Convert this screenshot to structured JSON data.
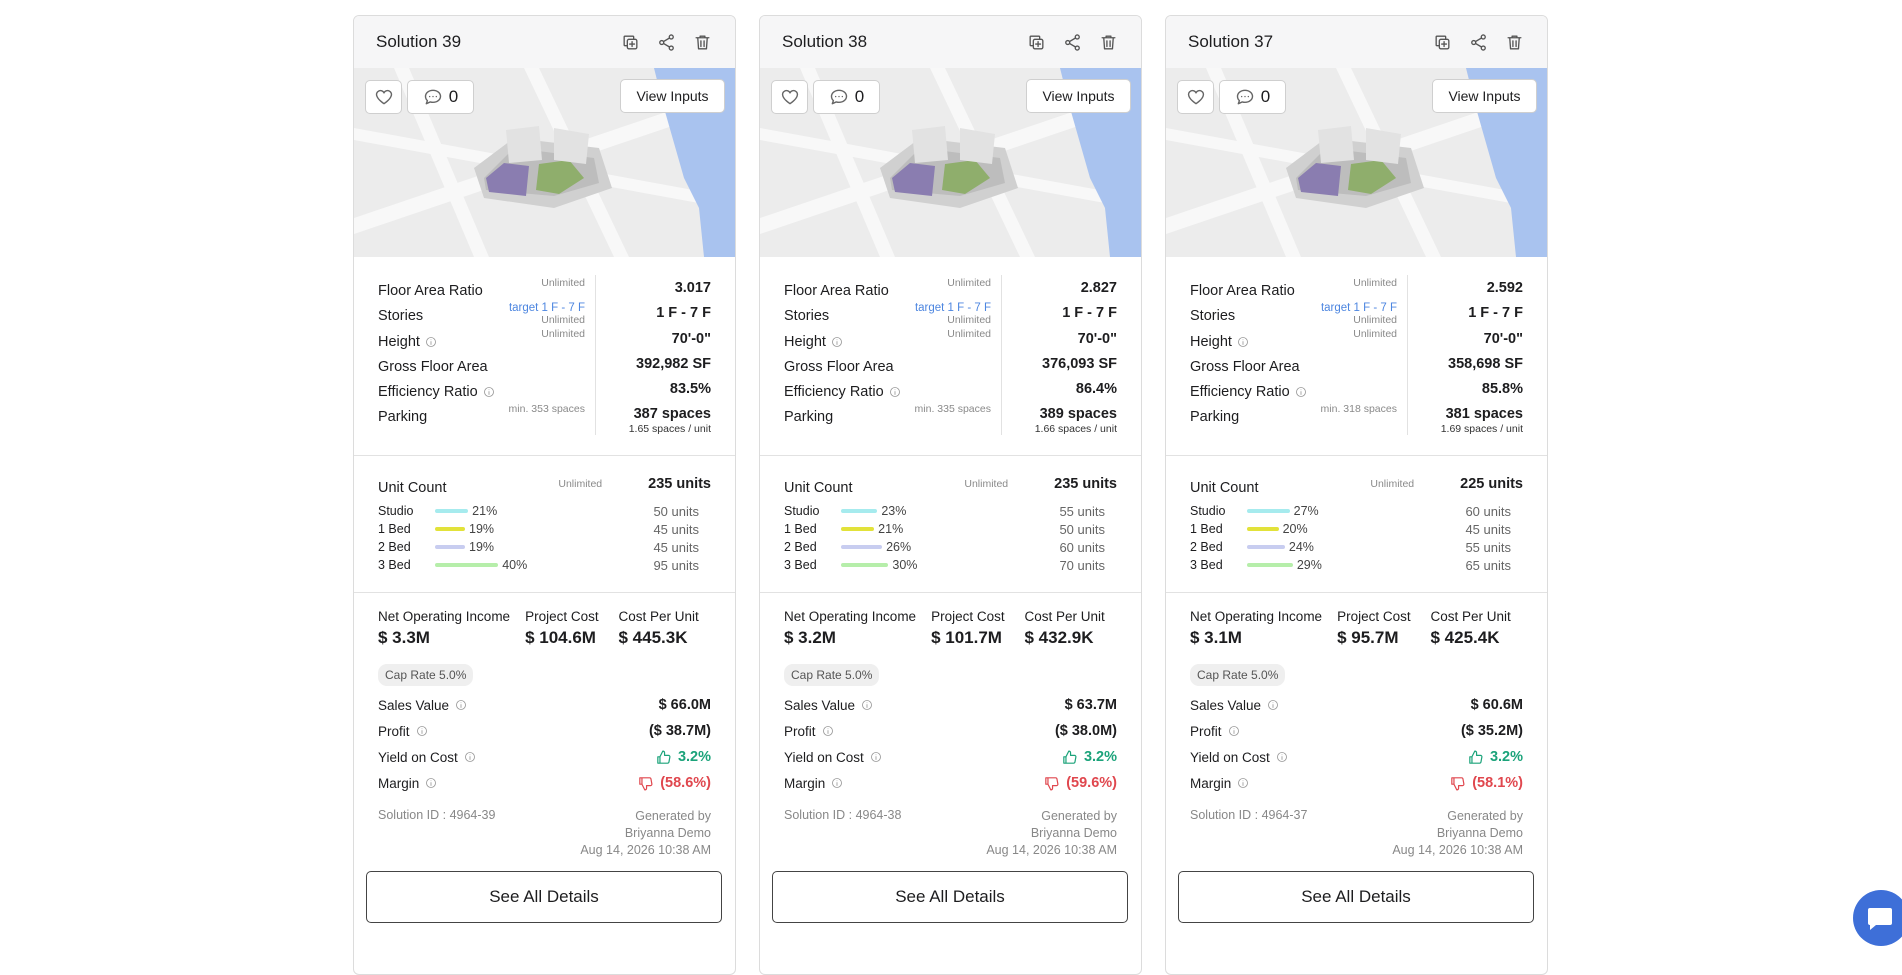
{
  "cards": [
    {
      "title": "Solution 39",
      "comments": "0",
      "view_inputs": "View Inputs",
      "metrics": [
        {
          "label": "Floor Area Ratio",
          "note": "Unlimited",
          "value": "3.017"
        },
        {
          "label": "Stories",
          "target": "target 1 F - 7 F",
          "note": "Unlimited",
          "value": "1 F - 7 F"
        },
        {
          "label": "Height",
          "info": true,
          "note": "Unlimited",
          "value": "70'-0\""
        },
        {
          "label": "Gross Floor Area",
          "value": "392,982 SF"
        },
        {
          "label": "Efficiency Ratio",
          "info": true,
          "value": "83.5%"
        },
        {
          "label": "Parking",
          "note": "min. 353 spaces",
          "value": "387 spaces",
          "sub": "1.65 spaces / unit"
        }
      ],
      "unit_count": {
        "label": "Unit Count",
        "note": "Unlimited",
        "value": "235 units"
      },
      "units": [
        {
          "name": "Studio",
          "pct": {
            "value": 21,
            "label": "21%"
          },
          "count": "50 units",
          "color": "#a6ebee"
        },
        {
          "name": "1 Bed",
          "pct": {
            "value": 19,
            "label": "19%"
          },
          "count": "45 units",
          "color": "#e2e23a"
        },
        {
          "name": "2 Bed",
          "pct": {
            "value": 19,
            "label": "19%"
          },
          "count": "45 units",
          "color": "#c8cdf0"
        },
        {
          "name": "3 Bed",
          "pct": {
            "value": 40,
            "label": "40%"
          },
          "count": "95 units",
          "color": "#b6eeaa"
        }
      ],
      "kpis": [
        {
          "label": "Net Operating Income",
          "value": "$ 3.3M"
        },
        {
          "label": "Project Cost",
          "value": "$ 104.6M"
        },
        {
          "label": "Cost Per Unit",
          "value": "$ 445.3K"
        }
      ],
      "cap_rate": "Cap Rate 5.0%",
      "finance": [
        {
          "label": "Sales Value",
          "value": "$ 66.0M"
        },
        {
          "label": "Profit",
          "value": "($ 38.7M)"
        },
        {
          "label": "Yield on Cost",
          "value": "3.2%",
          "trend": "up"
        },
        {
          "label": "Margin",
          "value": "(58.6%)",
          "trend": "down"
        }
      ],
      "solution_id": "Solution ID : 4964-39",
      "generated_by": "Generated by",
      "author": "Briyanna Demo",
      "date": "Aug 14, 2026 10:38 AM",
      "details_button": "See All Details"
    },
    {
      "title": "Solution 38",
      "comments": "0",
      "view_inputs": "View Inputs",
      "metrics": [
        {
          "label": "Floor Area Ratio",
          "note": "Unlimited",
          "value": "2.827"
        },
        {
          "label": "Stories",
          "target": "target 1 F - 7 F",
          "note": "Unlimited",
          "value": "1 F - 7 F"
        },
        {
          "label": "Height",
          "info": true,
          "note": "Unlimited",
          "value": "70'-0\""
        },
        {
          "label": "Gross Floor Area",
          "value": "376,093 SF"
        },
        {
          "label": "Efficiency Ratio",
          "info": true,
          "value": "86.4%"
        },
        {
          "label": "Parking",
          "note": "min. 335 spaces",
          "value": "389 spaces",
          "sub": "1.66 spaces / unit"
        }
      ],
      "unit_count": {
        "label": "Unit Count",
        "note": "Unlimited",
        "value": "235 units"
      },
      "units": [
        {
          "name": "Studio",
          "pct": {
            "value": 23,
            "label": "23%"
          },
          "count": "55 units",
          "color": "#a6ebee"
        },
        {
          "name": "1 Bed",
          "pct": {
            "value": 21,
            "label": "21%"
          },
          "count": "50 units",
          "color": "#e2e23a"
        },
        {
          "name": "2 Bed",
          "pct": {
            "value": 26,
            "label": "26%"
          },
          "count": "60 units",
          "color": "#c8cdf0"
        },
        {
          "name": "3 Bed",
          "pct": {
            "value": 30,
            "label": "30%"
          },
          "count": "70 units",
          "color": "#b6eeaa"
        }
      ],
      "kpis": [
        {
          "label": "Net Operating Income",
          "value": "$ 3.2M"
        },
        {
          "label": "Project Cost",
          "value": "$ 101.7M"
        },
        {
          "label": "Cost Per Unit",
          "value": "$ 432.9K"
        }
      ],
      "cap_rate": "Cap Rate 5.0%",
      "finance": [
        {
          "label": "Sales Value",
          "value": "$ 63.7M"
        },
        {
          "label": "Profit",
          "value": "($ 38.0M)"
        },
        {
          "label": "Yield on Cost",
          "value": "3.2%",
          "trend": "up"
        },
        {
          "label": "Margin",
          "value": "(59.6%)",
          "trend": "down"
        }
      ],
      "solution_id": "Solution ID : 4964-38",
      "generated_by": "Generated by",
      "author": "Briyanna Demo",
      "date": "Aug 14, 2026 10:38 AM",
      "details_button": "See All Details"
    },
    {
      "title": "Solution 37",
      "comments": "0",
      "view_inputs": "View Inputs",
      "metrics": [
        {
          "label": "Floor Area Ratio",
          "note": "Unlimited",
          "value": "2.592"
        },
        {
          "label": "Stories",
          "target": "target 1 F - 7 F",
          "note": "Unlimited",
          "value": "1 F - 7 F"
        },
        {
          "label": "Height",
          "info": true,
          "note": "Unlimited",
          "value": "70'-0\""
        },
        {
          "label": "Gross Floor Area",
          "value": "358,698 SF"
        },
        {
          "label": "Efficiency Ratio",
          "info": true,
          "value": "85.8%"
        },
        {
          "label": "Parking",
          "note": "min. 318 spaces",
          "value": "381 spaces",
          "sub": "1.69 spaces / unit"
        }
      ],
      "unit_count": {
        "label": "Unit Count",
        "note": "Unlimited",
        "value": "225 units"
      },
      "units": [
        {
          "name": "Studio",
          "pct": {
            "value": 27,
            "label": "27%"
          },
          "count": "60 units",
          "color": "#a6ebee"
        },
        {
          "name": "1 Bed",
          "pct": {
            "value": 20,
            "label": "20%"
          },
          "count": "45 units",
          "color": "#e2e23a"
        },
        {
          "name": "2 Bed",
          "pct": {
            "value": 24,
            "label": "24%"
          },
          "count": "55 units",
          "color": "#c8cdf0"
        },
        {
          "name": "3 Bed",
          "pct": {
            "value": 29,
            "label": "29%"
          },
          "count": "65 units",
          "color": "#b6eeaa"
        }
      ],
      "kpis": [
        {
          "label": "Net Operating Income",
          "value": "$ 3.1M"
        },
        {
          "label": "Project Cost",
          "value": "$ 95.7M"
        },
        {
          "label": "Cost Per Unit",
          "value": "$ 425.4K"
        }
      ],
      "cap_rate": "Cap Rate 5.0%",
      "finance": [
        {
          "label": "Sales Value",
          "value": "$ 60.6M"
        },
        {
          "label": "Profit",
          "value": "($ 35.2M)"
        },
        {
          "label": "Yield on Cost",
          "value": "3.2%",
          "trend": "up"
        },
        {
          "label": "Margin",
          "value": "(58.1%)",
          "trend": "down"
        }
      ],
      "solution_id": "Solution ID : 4964-37",
      "generated_by": "Generated by",
      "author": "Briyanna Demo",
      "date": "Aug 14, 2026 10:38 AM",
      "details_button": "See All Details"
    }
  ]
}
